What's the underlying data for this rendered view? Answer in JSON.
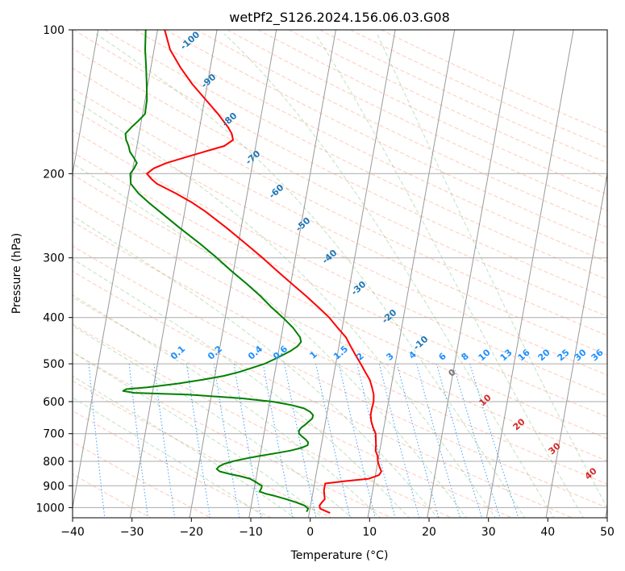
{
  "chart_data": {
    "type": "line",
    "title": "wetPf2_S126.2024.156.06.03.G08",
    "xlabel": "Temperature (°C)",
    "ylabel": "Pressure (hPa)",
    "xlim": [
      -40,
      50
    ],
    "ylim": [
      1050,
      100
    ],
    "y_scale": "log",
    "skew": true,
    "grid": true,
    "x_ticks": [
      "−40",
      "−30",
      "−20",
      "−10",
      "0",
      "10",
      "20",
      "30",
      "40",
      "50"
    ],
    "y_ticks": [
      100,
      200,
      300,
      400,
      500,
      600,
      700,
      800,
      900,
      1000
    ],
    "series": [
      {
        "color": "#ff0000",
        "points": [
          [
            1026,
            3.5
          ],
          [
            1005,
            1.7
          ],
          [
            990,
            1.5
          ],
          [
            975,
            1.8
          ],
          [
            960,
            2.2
          ],
          [
            940,
            2.0
          ],
          [
            920,
            1.8
          ],
          [
            900,
            1.8
          ],
          [
            890,
            1.8
          ],
          [
            880,
            5
          ],
          [
            870,
            9
          ],
          [
            855,
            10.6
          ],
          [
            840,
            10.9
          ],
          [
            820,
            10.4
          ],
          [
            800,
            10.0
          ],
          [
            780,
            9.8
          ],
          [
            760,
            9.3
          ],
          [
            740,
            9.2
          ],
          [
            720,
            9.0
          ],
          [
            700,
            8.8
          ],
          [
            680,
            8.2
          ],
          [
            660,
            7.7
          ],
          [
            640,
            7.4
          ],
          [
            620,
            7.4
          ],
          [
            600,
            7.5
          ],
          [
            580,
            7.3
          ],
          [
            560,
            6.8
          ],
          [
            540,
            6.2
          ],
          [
            520,
            5.2
          ],
          [
            500,
            4.2
          ],
          [
            480,
            3.1
          ],
          [
            460,
            2.0
          ],
          [
            440,
            0.9
          ],
          [
            420,
            -0.8
          ],
          [
            400,
            -2.5
          ],
          [
            380,
            -4.7
          ],
          [
            360,
            -7.1
          ],
          [
            340,
            -9.8
          ],
          [
            320,
            -12.6
          ],
          [
            300,
            -15.5
          ],
          [
            280,
            -18.8
          ],
          [
            260,
            -22.4
          ],
          [
            240,
            -26.5
          ],
          [
            230,
            -29.0
          ],
          [
            220,
            -32
          ],
          [
            210,
            -35.5
          ],
          [
            205,
            -36.6
          ],
          [
            200,
            -37.5
          ],
          [
            195,
            -36.5
          ],
          [
            190,
            -34.5
          ],
          [
            185,
            -31.6
          ],
          [
            180,
            -28.5
          ],
          [
            175,
            -25.3
          ],
          [
            170,
            -24
          ],
          [
            165,
            -24.4
          ],
          [
            160,
            -25.2
          ],
          [
            150,
            -27.3
          ],
          [
            140,
            -29.8
          ],
          [
            130,
            -32.5
          ],
          [
            120,
            -35.0
          ],
          [
            110,
            -37.3
          ],
          [
            100,
            -38.8
          ]
        ]
      },
      {
        "color": "#008000",
        "points": [
          [
            1020,
            -0.5
          ],
          [
            1005,
            -0.3
          ],
          [
            990,
            -1.0
          ],
          [
            975,
            -2.5
          ],
          [
            960,
            -4.3
          ],
          [
            945,
            -6.3
          ],
          [
            935,
            -7.9
          ],
          [
            925,
            -9.0
          ],
          [
            910,
            -8.8
          ],
          [
            900,
            -8.8
          ],
          [
            890,
            -9.5
          ],
          [
            880,
            -10.2
          ],
          [
            870,
            -11.0
          ],
          [
            860,
            -12.6
          ],
          [
            850,
            -14.6
          ],
          [
            840,
            -16.3
          ],
          [
            830,
            -16.9
          ],
          [
            820,
            -16.6
          ],
          [
            810,
            -15.8
          ],
          [
            800,
            -14.4
          ],
          [
            790,
            -12.5
          ],
          [
            780,
            -10.2
          ],
          [
            770,
            -7.6
          ],
          [
            760,
            -5.1
          ],
          [
            750,
            -3.3
          ],
          [
            740,
            -2.3
          ],
          [
            730,
            -2.3
          ],
          [
            720,
            -2.8
          ],
          [
            710,
            -3.5
          ],
          [
            700,
            -4.1
          ],
          [
            690,
            -4.2
          ],
          [
            680,
            -3.9
          ],
          [
            670,
            -3.3
          ],
          [
            660,
            -2.8
          ],
          [
            650,
            -2.3
          ],
          [
            640,
            -2.3
          ],
          [
            630,
            -2.9
          ],
          [
            620,
            -4.0
          ],
          [
            610,
            -6.2
          ],
          [
            600,
            -9.5
          ],
          [
            590,
            -15.0
          ],
          [
            580,
            -24.0
          ],
          [
            575,
            -33.0
          ],
          [
            570,
            -35.0
          ],
          [
            565,
            -34.5
          ],
          [
            560,
            -31.0
          ],
          [
            550,
            -26.0
          ],
          [
            540,
            -22.0
          ],
          [
            530,
            -18.5
          ],
          [
            520,
            -16.0
          ],
          [
            510,
            -14.0
          ],
          [
            500,
            -12.0
          ],
          [
            490,
            -10.6
          ],
          [
            480,
            -9.3
          ],
          [
            470,
            -8.0
          ],
          [
            460,
            -7.0
          ],
          [
            450,
            -6.5
          ],
          [
            440,
            -6.8
          ],
          [
            420,
            -8.3
          ],
          [
            400,
            -10.3
          ],
          [
            380,
            -12.6
          ],
          [
            360,
            -14.8
          ],
          [
            340,
            -17.4
          ],
          [
            320,
            -20.3
          ],
          [
            300,
            -23.2
          ],
          [
            280,
            -26.5
          ],
          [
            260,
            -30.3
          ],
          [
            240,
            -34.2
          ],
          [
            230,
            -36.3
          ],
          [
            220,
            -38.3
          ],
          [
            210,
            -39.9
          ],
          [
            200,
            -40.3
          ],
          [
            195,
            -39.8
          ],
          [
            190,
            -39.5
          ],
          [
            185,
            -40.2
          ],
          [
            180,
            -41.0
          ],
          [
            175,
            -41.4
          ],
          [
            170,
            -42.0
          ],
          [
            165,
            -42.3
          ],
          [
            160,
            -41.5
          ],
          [
            155,
            -40.5
          ],
          [
            150,
            -39.6
          ],
          [
            140,
            -39.7
          ],
          [
            130,
            -40.2
          ],
          [
            120,
            -40.8
          ],
          [
            110,
            -41.5
          ],
          [
            100,
            -42.0
          ]
        ]
      }
    ]
  },
  "annotations": {
    "dry_adiabats": [
      "-100",
      "-90",
      "-80",
      "-70",
      "-60",
      "-50",
      "-40",
      "-30",
      "-20",
      "-10"
    ],
    "mixing_ratios": [
      "0.1",
      "0.2",
      "0.4",
      "0.6",
      "1",
      "1.5",
      "2",
      "3",
      "4",
      "6",
      "8",
      "10",
      "13",
      "16",
      "20",
      "25",
      "30",
      "36"
    ],
    "moist_adiabats": [
      "0",
      "10",
      "20",
      "30",
      "40"
    ]
  }
}
